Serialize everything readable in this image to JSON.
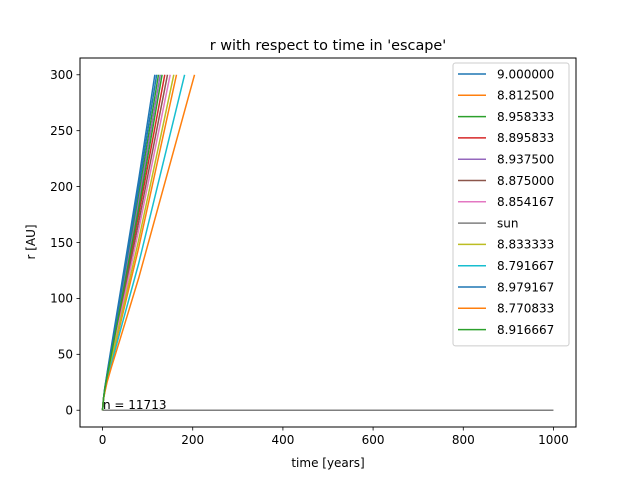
{
  "chart_data": {
    "type": "line",
    "title": "r with respect to time in 'escape'",
    "xlabel": "time [years]",
    "ylabel": "r [AU]",
    "xlim": [
      -50,
      1050
    ],
    "ylim": [
      -15,
      315
    ],
    "xticks": [
      0,
      200,
      400,
      600,
      800,
      1000
    ],
    "yticks": [
      0,
      50,
      100,
      150,
      200,
      250,
      300
    ],
    "grid": false,
    "legend_position": "top-right",
    "annotation": "n = 11713",
    "series": [
      {
        "name": "9.000000",
        "color": "#1f77b4",
        "x": [
          0,
          2,
          5,
          10,
          20,
          40,
          80,
          116
        ],
        "y": [
          0,
          10,
          20,
          33,
          58,
          107,
          206,
          300
        ]
      },
      {
        "name": "8.812500",
        "color": "#ff7f0e",
        "x": [
          0,
          2,
          5,
          10,
          20,
          40,
          80,
          164
        ],
        "y": [
          0,
          10,
          17,
          27,
          44,
          78,
          145,
          300
        ]
      },
      {
        "name": "8.958333",
        "color": "#2ca02c",
        "x": [
          0,
          2,
          5,
          10,
          20,
          40,
          80,
          124
        ],
        "y": [
          0,
          10,
          19,
          31,
          54,
          100,
          192,
          300
        ]
      },
      {
        "name": "8.895833",
        "color": "#d62728",
        "x": [
          0,
          2,
          5,
          10,
          20,
          40,
          80,
          138
        ],
        "y": [
          0,
          10,
          18,
          29,
          50,
          91,
          175,
          300
        ]
      },
      {
        "name": "8.937500",
        "color": "#9467bd",
        "x": [
          0,
          2,
          5,
          10,
          20,
          40,
          80,
          128
        ],
        "y": [
          0,
          10,
          19,
          30,
          53,
          97,
          186,
          300
        ]
      },
      {
        "name": "8.875000",
        "color": "#8c564b",
        "x": [
          0,
          2,
          5,
          10,
          20,
          40,
          80,
          144
        ],
        "y": [
          0,
          10,
          18,
          29,
          49,
          88,
          168,
          300
        ]
      },
      {
        "name": "8.854167",
        "color": "#e377c2",
        "x": [
          0,
          2,
          5,
          10,
          20,
          40,
          80,
          150
        ],
        "y": [
          0,
          10,
          18,
          28,
          48,
          85,
          161,
          300
        ]
      },
      {
        "name": "sun",
        "color": "#7f7f7f",
        "x": [
          0,
          1000
        ],
        "y": [
          0,
          0
        ]
      },
      {
        "name": "8.833333",
        "color": "#bcbd22",
        "x": [
          0,
          2,
          5,
          10,
          20,
          40,
          80,
          158
        ],
        "y": [
          0,
          10,
          17,
          28,
          46,
          81,
          152,
          300
        ]
      },
      {
        "name": "8.791667",
        "color": "#17becf",
        "x": [
          0,
          2,
          5,
          10,
          20,
          40,
          80,
          182
        ],
        "y": [
          0,
          10,
          17,
          26,
          42,
          72,
          131,
          300
        ]
      },
      {
        "name": "8.979167",
        "color": "#1f77b4",
        "x": [
          0,
          2,
          5,
          10,
          20,
          40,
          80,
          120
        ],
        "y": [
          0,
          10,
          20,
          32,
          56,
          103,
          199,
          300
        ]
      },
      {
        "name": "8.770833",
        "color": "#ff7f0e",
        "x": [
          0,
          2,
          5,
          10,
          20,
          40,
          80,
          204
        ],
        "y": [
          0,
          10,
          16,
          25,
          39,
          65,
          118,
          300
        ]
      },
      {
        "name": "8.916667",
        "color": "#2ca02c",
        "x": [
          0,
          2,
          5,
          10,
          20,
          40,
          80,
          132
        ],
        "y": [
          0,
          10,
          19,
          30,
          51,
          94,
          180,
          300
        ]
      }
    ]
  }
}
